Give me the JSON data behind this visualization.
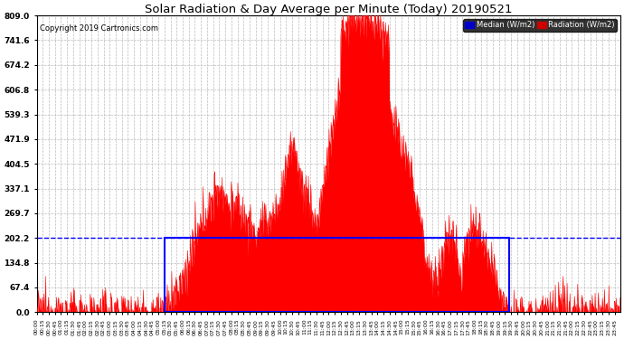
{
  "title": "Solar Radiation & Day Average per Minute (Today) 20190521",
  "copyright": "Copyright 2019 Cartronics.com",
  "ylim": [
    0.0,
    809.0
  ],
  "yticks": [
    0.0,
    67.4,
    134.8,
    202.2,
    269.7,
    337.1,
    404.5,
    471.9,
    539.3,
    606.8,
    674.2,
    741.6,
    809.0
  ],
  "bg_color": "#ffffff",
  "radiation_color": "#ff0000",
  "median_color": "#0000ff",
  "grid_color": "#bbbbbb",
  "title_color": "#000000",
  "legend_median_bg": "#0000cc",
  "legend_radiation_bg": "#cc0000",
  "n_minutes": 1440,
  "sunrise_minute": 315,
  "sunset_minute": 1165,
  "median_value": 202.2
}
